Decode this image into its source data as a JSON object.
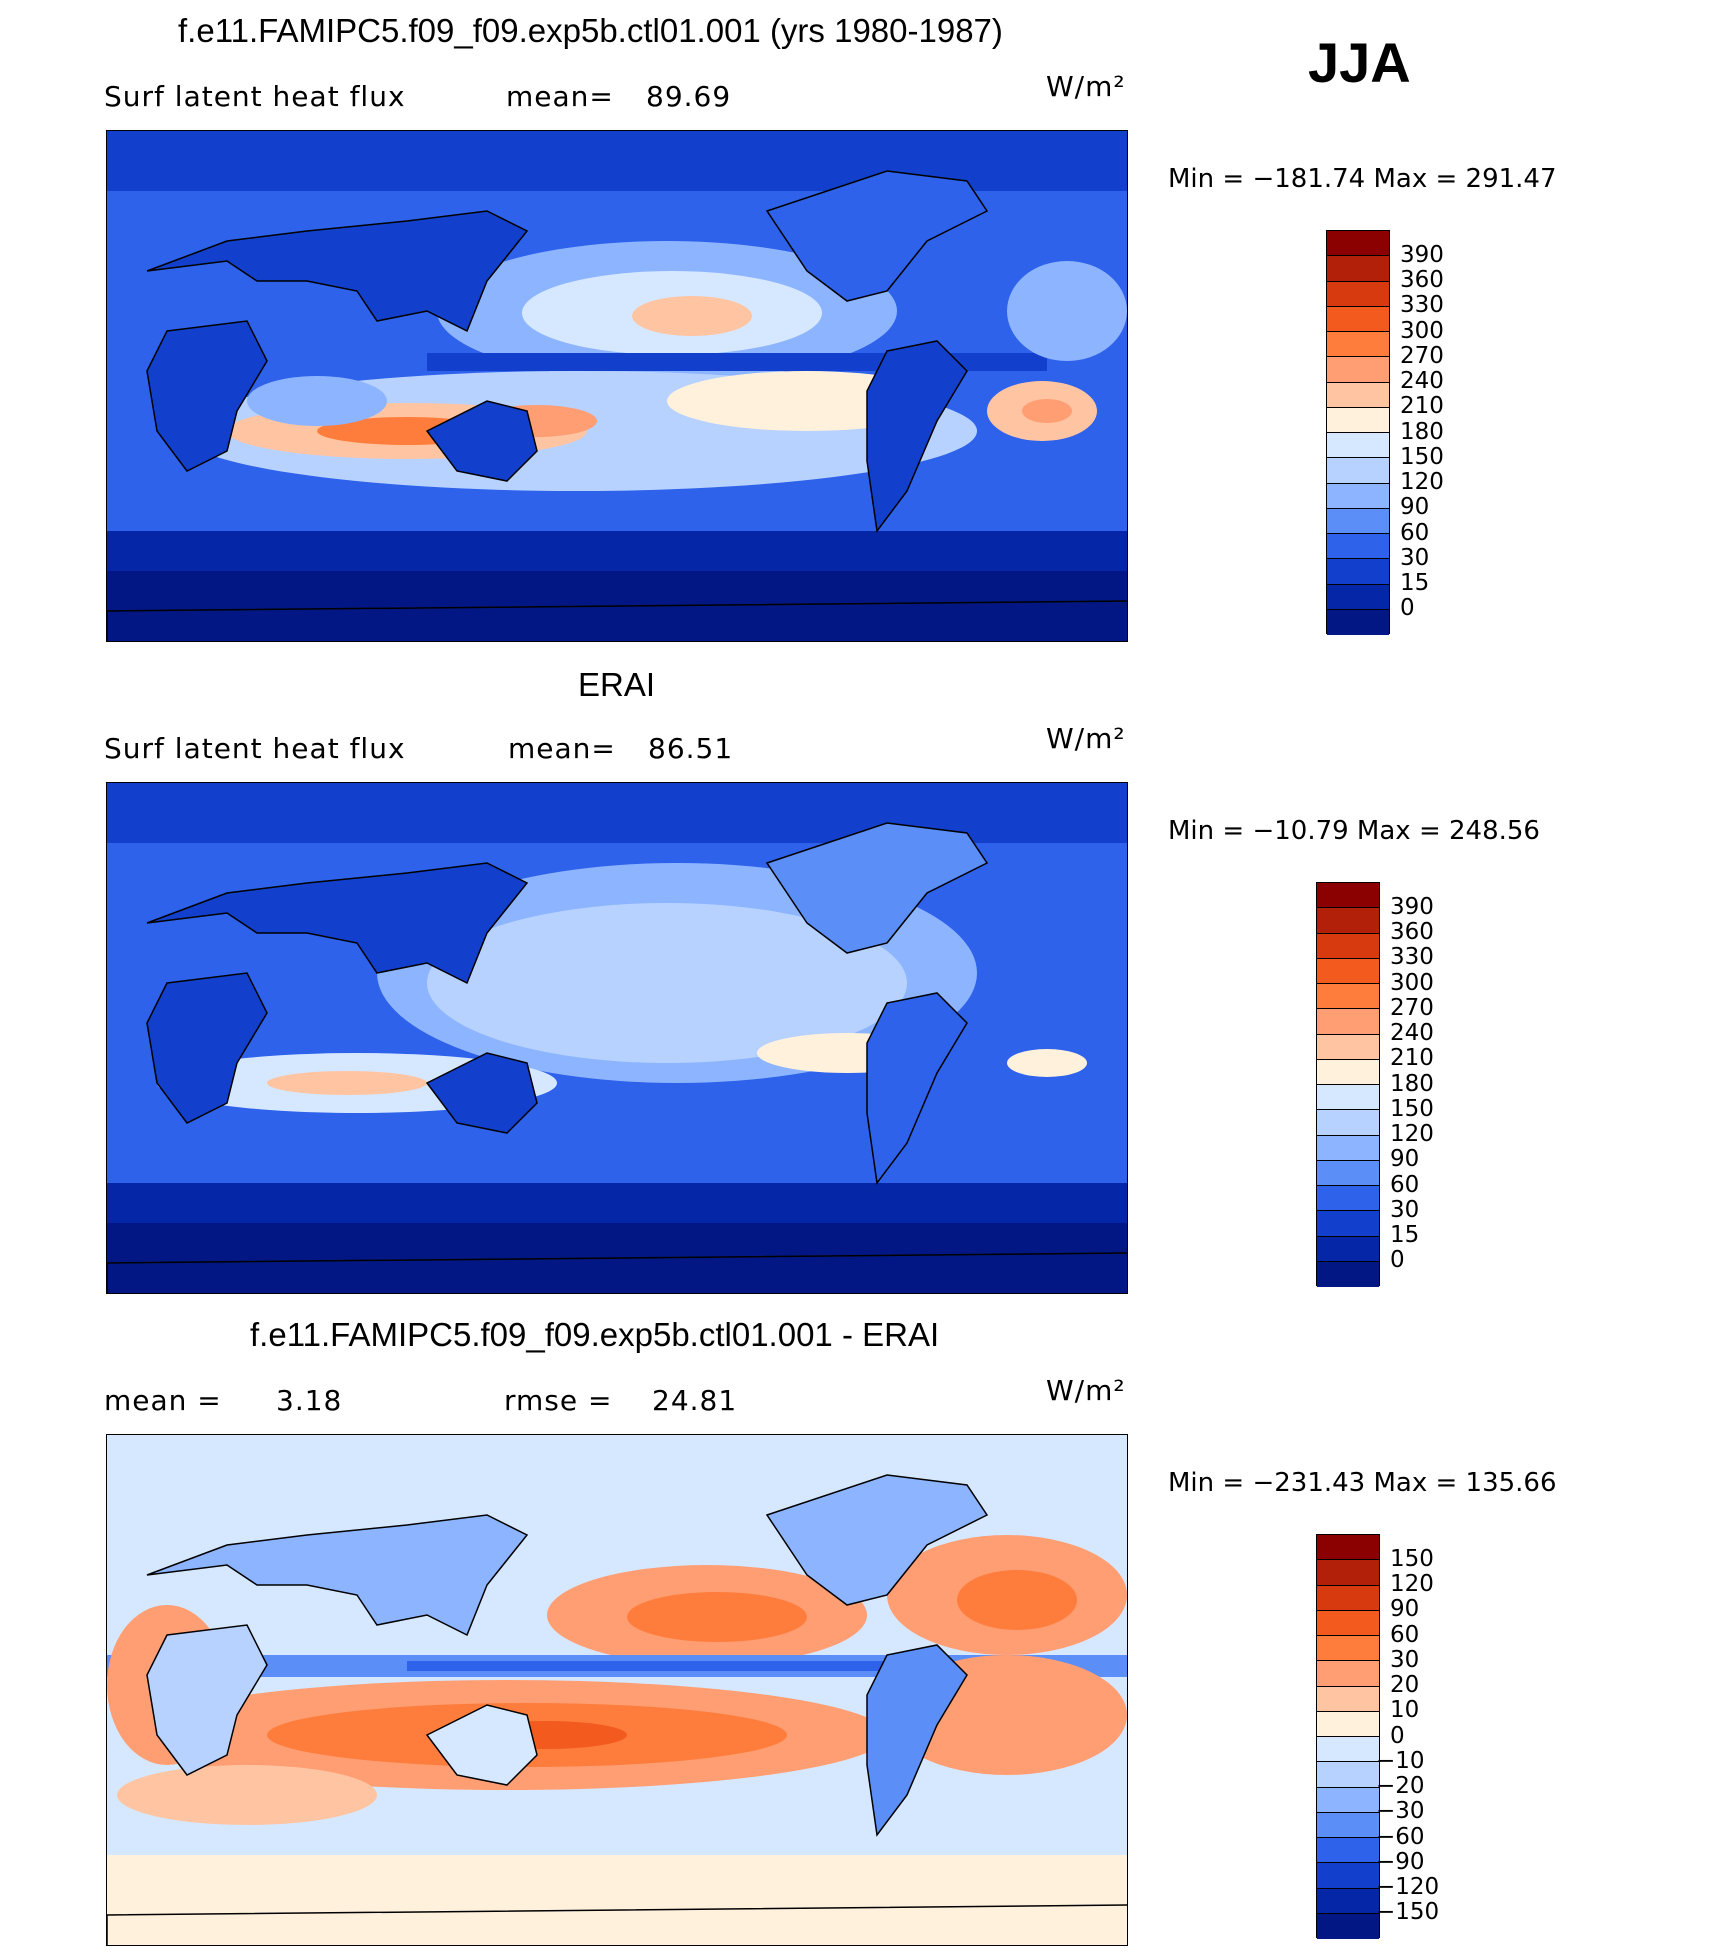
{
  "season": "JJA",
  "panels": [
    {
      "id": "model",
      "title": "f.e11.FAMIPC5.f09_f09.exp5b.ctl01.001 (yrs 1980-1987)",
      "variable": "Surf  latent  heat  flux",
      "stat1_label": "mean=",
      "stat1_value": "89.69",
      "stat2_label": "",
      "stat2_value": "",
      "units": "W/m²",
      "minmax": "Min  =  −181.74  Max  =  291.47",
      "colorbar": {
        "labels": [
          "390",
          "360",
          "330",
          "300",
          "270",
          "240",
          "210",
          "180",
          "150",
          "120",
          "90",
          "60",
          "30",
          "15",
          "0"
        ],
        "colors": [
          "#8b0000",
          "#b3200a",
          "#d83a10",
          "#f25a1e",
          "#ff7d3c",
          "#ff9e73",
          "#ffc5a3",
          "#fff1dc",
          "#d6e8ff",
          "#b8d2ff",
          "#8db4ff",
          "#5b8ef7",
          "#2e62ea",
          "#1240cc",
          "#0626a8",
          "#021783"
        ]
      }
    },
    {
      "id": "obs",
      "title": "ERAI",
      "variable": "Surf  latent  heat  flux",
      "stat1_label": "mean=",
      "stat1_value": "86.51",
      "stat2_label": "",
      "stat2_value": "",
      "units": "W/m²",
      "minmax": "Min  =  −10.79  Max  =  248.56",
      "colorbar": {
        "labels": [
          "390",
          "360",
          "330",
          "300",
          "270",
          "240",
          "210",
          "180",
          "150",
          "120",
          "90",
          "60",
          "30",
          "15",
          "0"
        ],
        "colors": [
          "#8b0000",
          "#b3200a",
          "#d83a10",
          "#f25a1e",
          "#ff7d3c",
          "#ff9e73",
          "#ffc5a3",
          "#fff1dc",
          "#d6e8ff",
          "#b8d2ff",
          "#8db4ff",
          "#5b8ef7",
          "#2e62ea",
          "#1240cc",
          "#0626a8",
          "#021783"
        ]
      }
    },
    {
      "id": "diff",
      "title": "f.e11.FAMIPC5.f09_f09.exp5b.ctl01.001 - ERAI",
      "variable": "",
      "stat1_label": "mean  =",
      "stat1_value": "3.18",
      "stat2_label": "rmse  =",
      "stat2_value": "24.81",
      "units": "W/m²",
      "minmax": "Min  =  −231.43  Max  =  135.66",
      "colorbar": {
        "labels": [
          "150",
          "120",
          "90",
          "60",
          "30",
          "20",
          "10",
          "0",
          "−10",
          "−20",
          "−30",
          "−60",
          "−90",
          "−120",
          "−150"
        ],
        "colors": [
          "#8b0000",
          "#b3200a",
          "#d83a10",
          "#f25a1e",
          "#ff7d3c",
          "#ff9e73",
          "#ffc5a3",
          "#fff1dc",
          "#d6e8ff",
          "#b8d2ff",
          "#8db4ff",
          "#5b8ef7",
          "#2e62ea",
          "#1240cc",
          "#0626a8",
          "#021783"
        ]
      }
    }
  ]
}
